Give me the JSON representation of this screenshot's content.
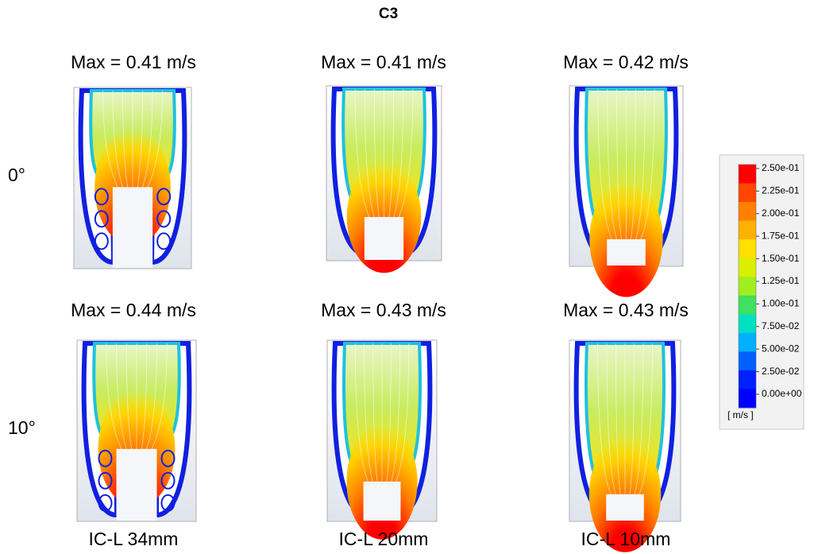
{
  "title": "C3",
  "columns": [
    "IC-L 34mm",
    "IC-L 20mm",
    "IC-L 10mm"
  ],
  "rows": [
    {
      "label": "0°",
      "max": [
        "Max = 0.41 m/s",
        "Max = 0.41 m/s",
        "Max = 0.42 m/s"
      ]
    },
    {
      "label": "10°",
      "max": [
        "Max = 0.44 m/s",
        "Max = 0.43 m/s",
        "Max = 0.43 m/s"
      ]
    }
  ],
  "colorbar": {
    "labels": [
      "2.50e-01",
      "2.25e-01",
      "2.00e-01",
      "1.75e-01",
      "1.50e-01",
      "1.25e-01",
      "1.00e-01",
      "7.50e-02",
      "5.00e-02",
      "2.50e-02",
      "0.00e+00"
    ],
    "colors": [
      "#ff0000",
      "#ff4500",
      "#ff8000",
      "#ffb000",
      "#ffe000",
      "#d8f000",
      "#a0ee20",
      "#40e060",
      "#00e0c0",
      "#00b0ff",
      "#0060ff",
      "#0020ff",
      "#0000ff"
    ],
    "unit": "[ m/s ]"
  }
}
